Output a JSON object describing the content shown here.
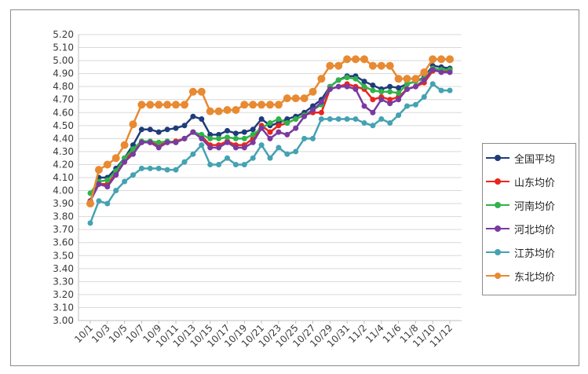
{
  "chart_data": {
    "type": "line",
    "title": "",
    "xlabel": "",
    "ylabel": "",
    "ylim": [
      3.0,
      5.2
    ],
    "yticks": [
      "3.00",
      "3.10",
      "3.20",
      "3.30",
      "3.40",
      "3.50",
      "3.60",
      "3.70",
      "3.80",
      "3.90",
      "4.00",
      "4.10",
      "4.20",
      "4.30",
      "4.40",
      "4.50",
      "4.60",
      "4.70",
      "4.80",
      "4.90",
      "5.00",
      "5.10",
      "5.20"
    ],
    "xtick_labels": [
      "10/1",
      "10/3",
      "10/5",
      "10/7",
      "10/9",
      "10/11",
      "10/13",
      "10/15",
      "10/17",
      "10/19",
      "10/21",
      "10/23",
      "10/25",
      "10/27",
      "10/29",
      "10/31",
      "11/2",
      "11/4",
      "11/6",
      "11/8",
      "11/10",
      "11/12"
    ],
    "x": [
      "10/1",
      "10/2",
      "10/3",
      "10/4",
      "10/5",
      "10/6",
      "10/7",
      "10/8",
      "10/9",
      "10/10",
      "10/11",
      "10/12",
      "10/13",
      "10/14",
      "10/15",
      "10/16",
      "10/17",
      "10/18",
      "10/19",
      "10/20",
      "10/21",
      "10/22",
      "10/23",
      "10/24",
      "10/25",
      "10/26",
      "10/27",
      "10/28",
      "10/29",
      "10/30",
      "10/31",
      "11/1",
      "11/2",
      "11/3",
      "11/4",
      "11/5",
      "11/6",
      "11/7",
      "11/8",
      "11/9",
      "11/10",
      "11/11",
      "11/12"
    ],
    "grid": "horizontal",
    "legend_position": "right",
    "series": [
      {
        "name": "全国平均",
        "color": "#1f3c7a",
        "values": [
          3.92,
          4.1,
          4.1,
          4.17,
          4.25,
          4.35,
          4.47,
          4.47,
          4.45,
          4.47,
          4.48,
          4.5,
          4.57,
          4.55,
          4.43,
          4.43,
          4.46,
          4.44,
          4.45,
          4.47,
          4.55,
          4.5,
          4.52,
          4.55,
          4.57,
          4.6,
          4.65,
          4.7,
          4.8,
          4.85,
          4.88,
          4.88,
          4.84,
          4.81,
          4.78,
          4.8,
          4.79,
          4.82,
          4.84,
          4.87,
          4.96,
          4.95,
          4.94
        ]
      },
      {
        "name": "山东均价",
        "color": "#e8261c",
        "values": [
          3.92,
          4.05,
          4.05,
          4.13,
          4.23,
          4.3,
          4.37,
          4.37,
          4.35,
          4.37,
          4.38,
          4.4,
          4.45,
          4.42,
          4.35,
          4.35,
          4.38,
          4.35,
          4.35,
          4.4,
          4.5,
          4.45,
          4.5,
          4.52,
          4.55,
          4.58,
          4.6,
          4.6,
          4.78,
          4.8,
          4.82,
          4.8,
          4.78,
          4.7,
          4.72,
          4.7,
          4.72,
          4.78,
          4.8,
          4.83,
          4.92,
          4.92,
          4.92
        ]
      },
      {
        "name": "河南均价",
        "color": "#2fb34a",
        "values": [
          3.98,
          4.07,
          4.08,
          4.15,
          4.25,
          4.32,
          4.38,
          4.38,
          4.37,
          4.38,
          4.37,
          4.4,
          4.45,
          4.43,
          4.4,
          4.4,
          4.41,
          4.4,
          4.4,
          4.43,
          4.48,
          4.52,
          4.55,
          4.52,
          4.55,
          4.58,
          4.62,
          4.66,
          4.8,
          4.85,
          4.87,
          4.86,
          4.8,
          4.77,
          4.76,
          4.76,
          4.75,
          4.82,
          4.84,
          4.86,
          4.94,
          4.93,
          4.93
        ]
      },
      {
        "name": "河北均价",
        "color": "#7a3aa0",
        "values": [
          3.92,
          4.05,
          4.03,
          4.12,
          4.22,
          4.28,
          4.37,
          4.37,
          4.33,
          4.37,
          4.37,
          4.4,
          4.45,
          4.4,
          4.33,
          4.33,
          4.37,
          4.33,
          4.33,
          4.37,
          4.48,
          4.4,
          4.45,
          4.43,
          4.48,
          4.57,
          4.62,
          4.68,
          4.78,
          4.8,
          4.8,
          4.78,
          4.65,
          4.6,
          4.7,
          4.67,
          4.7,
          4.78,
          4.8,
          4.85,
          4.93,
          4.91,
          4.91
        ]
      },
      {
        "name": "江苏均价",
        "color": "#45a2b2",
        "values": [
          3.75,
          3.92,
          3.9,
          4.0,
          4.07,
          4.12,
          4.17,
          4.17,
          4.17,
          4.16,
          4.16,
          4.22,
          4.28,
          4.35,
          4.2,
          4.2,
          4.25,
          4.2,
          4.2,
          4.25,
          4.35,
          4.25,
          4.33,
          4.28,
          4.3,
          4.4,
          4.4,
          4.55,
          4.55,
          4.55,
          4.55,
          4.55,
          4.52,
          4.5,
          4.55,
          4.52,
          4.58,
          4.65,
          4.66,
          4.72,
          4.82,
          4.77,
          4.77
        ]
      },
      {
        "name": "东北均价",
        "color": "#e88a32",
        "values": [
          3.9,
          4.16,
          4.2,
          4.25,
          4.35,
          4.51,
          4.66,
          4.66,
          4.66,
          4.66,
          4.66,
          4.66,
          4.76,
          4.76,
          4.61,
          4.61,
          4.62,
          4.62,
          4.66,
          4.66,
          4.66,
          4.66,
          4.66,
          4.71,
          4.71,
          4.71,
          4.76,
          4.86,
          4.96,
          4.96,
          5.01,
          5.01,
          5.01,
          4.96,
          4.96,
          4.96,
          4.86,
          4.86,
          4.86,
          4.91,
          5.01,
          5.01,
          5.01
        ]
      }
    ]
  }
}
